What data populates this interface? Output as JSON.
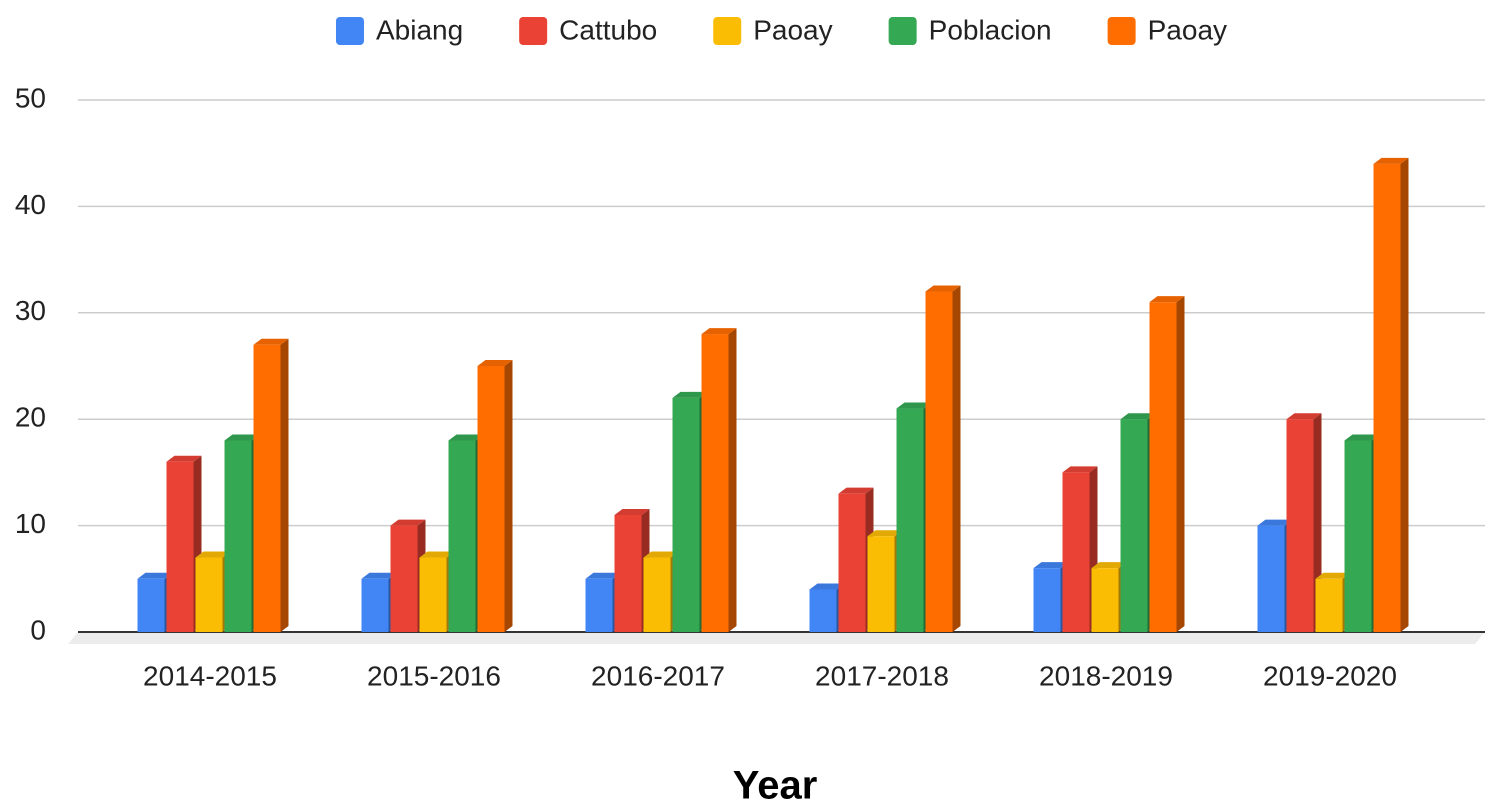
{
  "chart_data": {
    "type": "bar",
    "x_label": "Year",
    "categories": [
      "2014-2015",
      "2015-2016",
      "2016-2017",
      "2017-2018",
      "2018-2019",
      "2019-2020"
    ],
    "series": [
      {
        "name": "Abiang",
        "color": "#4285f4",
        "values": [
          5,
          5,
          5,
          4,
          6,
          10
        ]
      },
      {
        "name": "Cattubo",
        "color": "#ea4335",
        "values": [
          16,
          10,
          11,
          13,
          15,
          20
        ]
      },
      {
        "name": "Paoay",
        "color": "#fbbc04",
        "values": [
          7,
          7,
          7,
          9,
          6,
          5
        ]
      },
      {
        "name": "Poblacion",
        "color": "#34a853",
        "values": [
          18,
          18,
          22,
          21,
          20,
          18
        ]
      },
      {
        "name": "Paoay",
        "color": "#ff6d01",
        "values": [
          27,
          25,
          28,
          32,
          31,
          44
        ]
      }
    ],
    "ylim": [
      0,
      50
    ],
    "yticks": [
      0,
      10,
      20,
      30,
      40,
      50
    ],
    "grid": true,
    "legend": "top"
  }
}
